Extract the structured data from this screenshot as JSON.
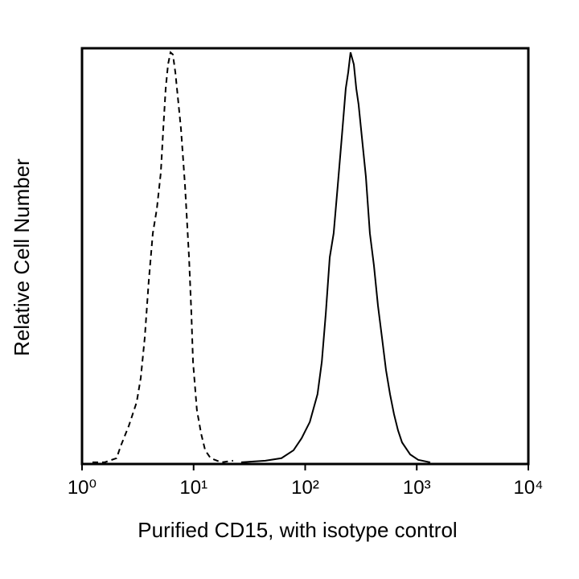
{
  "chart_data": {
    "type": "line",
    "x_label": "Purified CD15, with isotype control",
    "y_label": "Relative Cell Number",
    "xscale": "log",
    "xlim": [
      1,
      10000
    ],
    "ylim": [
      0,
      100
    ],
    "xticks": [
      {
        "value": 1,
        "label": "10⁰"
      },
      {
        "value": 10,
        "label": "10¹"
      },
      {
        "value": 100,
        "label": "10²"
      },
      {
        "value": 1000,
        "label": "10³"
      },
      {
        "value": 10000,
        "label": "10⁴"
      }
    ],
    "series": [
      {
        "color": "#000000",
        "dash": true,
        "x": [
          1.24,
          1.59,
          2.04,
          2.22,
          2.62,
          3.09,
          3.36,
          3.65,
          3.96,
          4.31,
          4.68,
          5.08,
          5.35,
          5.62,
          5.9,
          6.21,
          6.52,
          6.86,
          7.21,
          7.7,
          8.37,
          9.1,
          9.55,
          9.88,
          10.7,
          11.7,
          12.7,
          14.2,
          17.7,
          22.6
        ],
        "values": [
          0.4,
          0.4,
          1.4,
          4.3,
          9.1,
          14.9,
          20.7,
          30.4,
          43.9,
          55.5,
          61.3,
          70,
          80.7,
          90.3,
          96.1,
          99,
          98.5,
          94.2,
          88.4,
          80.7,
          67.1,
          49.7,
          36.2,
          24.6,
          13,
          7.2,
          3.3,
          1.4,
          0.4,
          0.8
        ]
      },
      {
        "color": "#000000",
        "dash": false,
        "x": [
          26.7,
          44,
          61.3,
          78.6,
          92.9,
          110,
          129,
          141,
          153,
          166,
          180,
          196,
          213,
          231,
          243,
          255,
          273,
          287,
          301,
          322,
          350,
          380,
          413,
          449,
          488,
          530,
          576,
          625,
          679,
          738,
          873,
          1030,
          1321
        ],
        "values": [
          0.4,
          0.8,
          1.4,
          3.3,
          6.2,
          10.1,
          16.8,
          24.6,
          36.2,
          49.7,
          55.5,
          67.1,
          78.7,
          90.3,
          94.2,
          99,
          96.1,
          90.3,
          86.5,
          78.7,
          69.1,
          55.5,
          47.8,
          38.1,
          30.4,
          22.6,
          16.8,
          12,
          8.1,
          5.2,
          2.3,
          1,
          0.4
        ]
      }
    ]
  }
}
